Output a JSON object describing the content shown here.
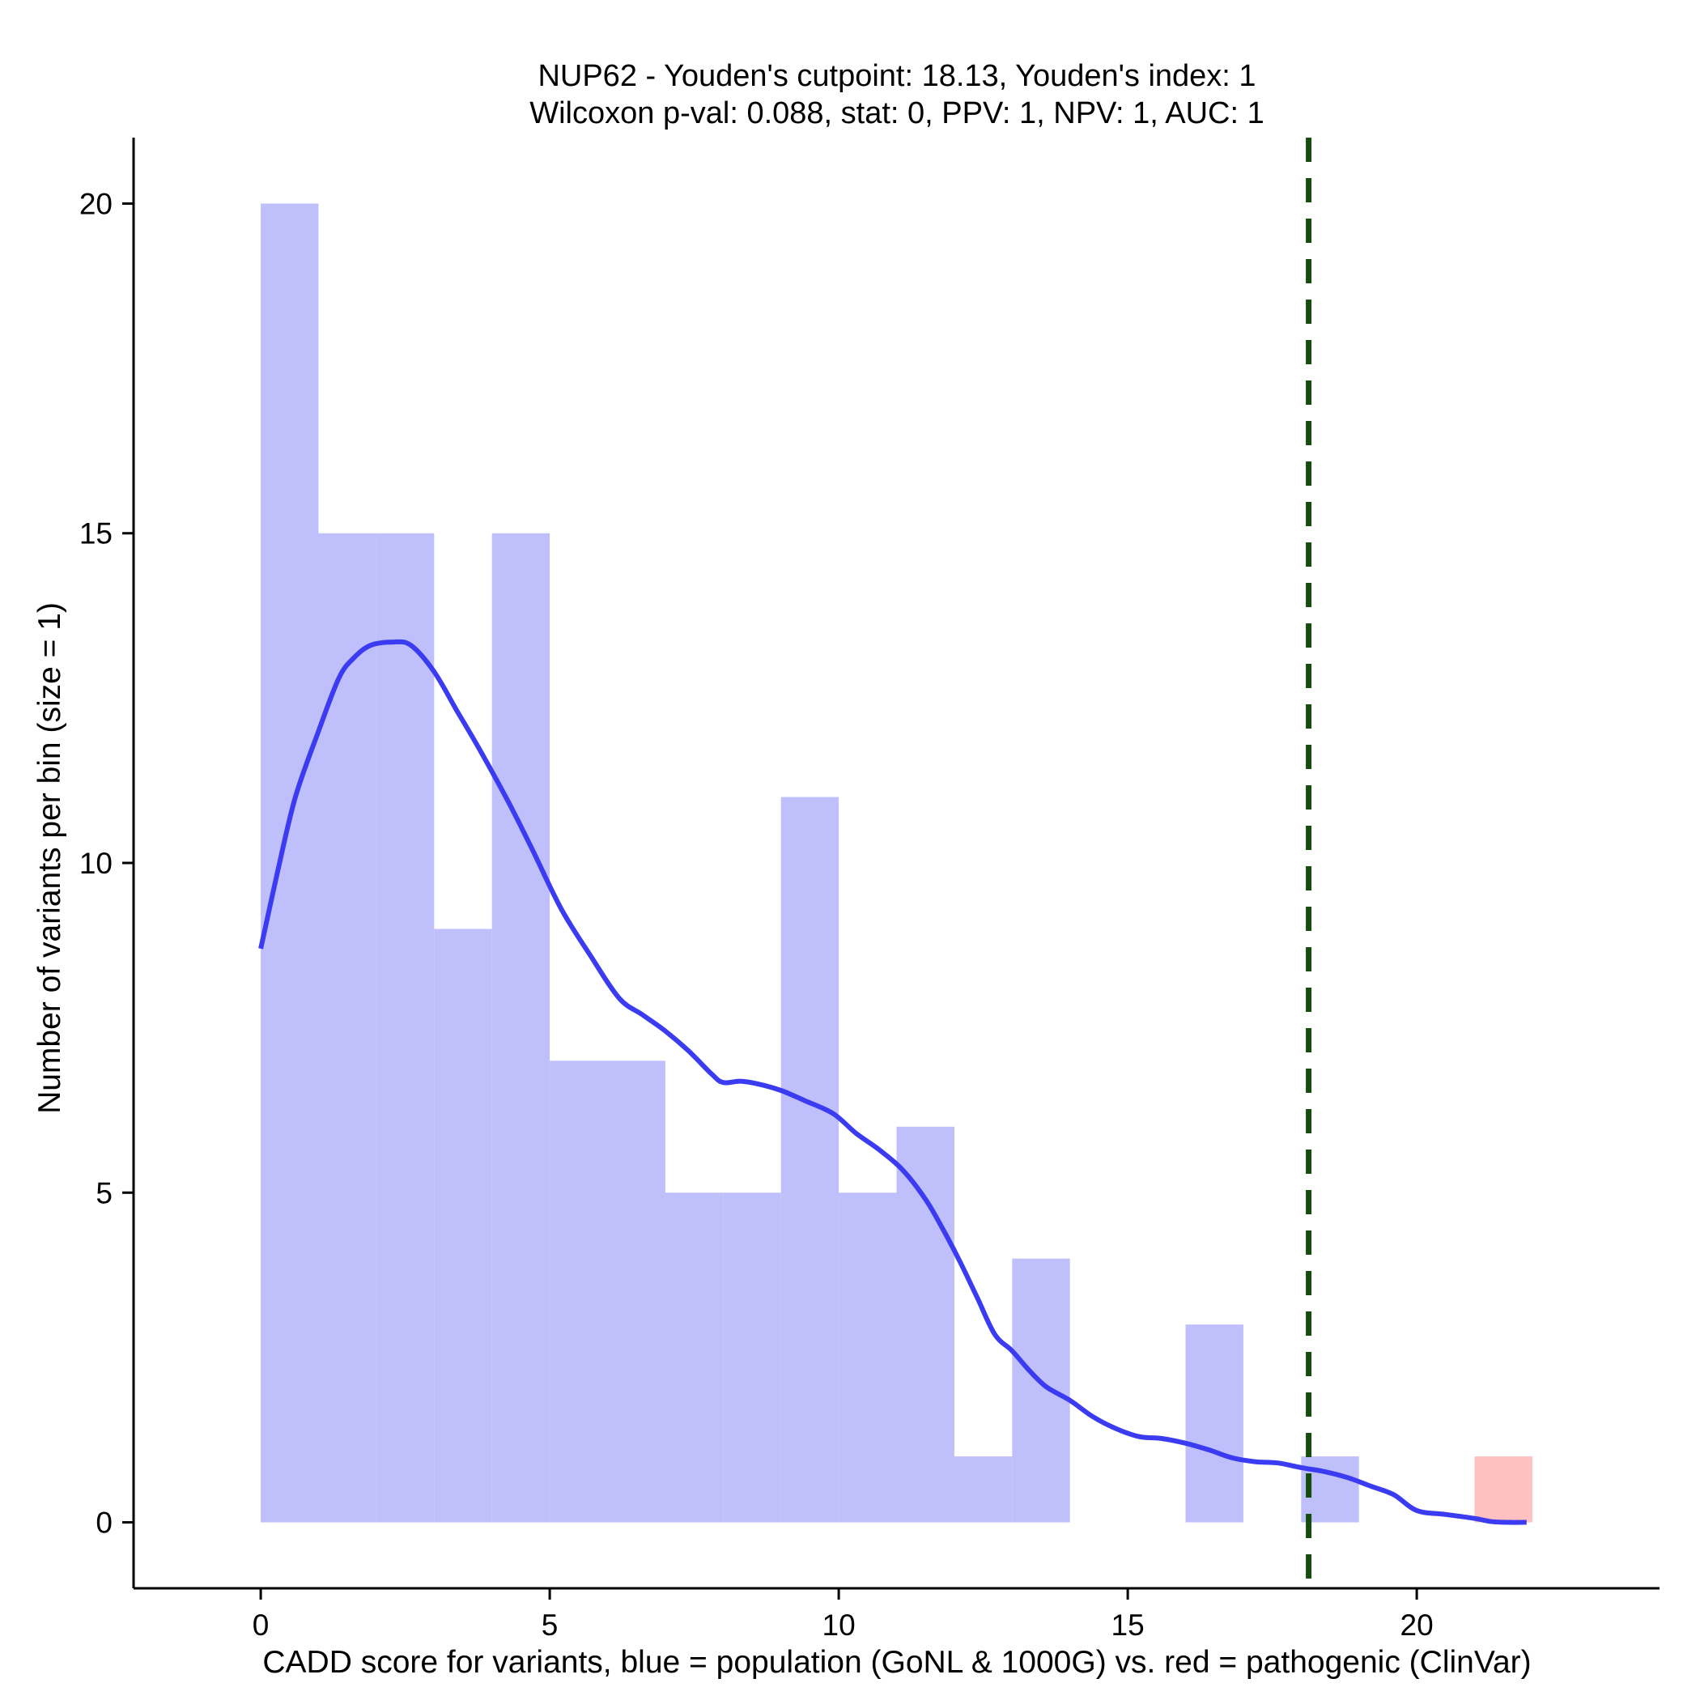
{
  "chart_data": {
    "type": "histogram",
    "title_lines": [
      "NUP62 - Youden's cutpoint: 18.13, Youden's index: 1",
      "Wilcoxon p-val: 0.088, stat: 0, PPV: 1, NPV: 1, AUC: 1"
    ],
    "xlabel": "CADD score for variants, blue = population (GoNL & 1000G) vs. red = pathogenic (ClinVar)",
    "ylabel": "Number of variants per bin (size = 1)",
    "xlim": [
      -2.2,
      24.2
    ],
    "ylim": [
      -1,
      21
    ],
    "x_ticks": [
      0,
      5,
      10,
      15,
      20
    ],
    "x_tick_labels": [
      "0",
      "5",
      "10",
      "15",
      "20"
    ],
    "y_ticks": [
      0,
      5,
      10,
      15,
      20
    ],
    "y_tick_labels": [
      "0",
      "5",
      "10",
      "15",
      "20"
    ],
    "bin_size": 1,
    "series": [
      {
        "name": "population (GoNL & 1000G)",
        "color": "#bfbffc",
        "bins": [
          {
            "x0": 0,
            "x1": 1,
            "count": 20
          },
          {
            "x0": 1,
            "x1": 2,
            "count": 15
          },
          {
            "x0": 2,
            "x1": 3,
            "count": 15
          },
          {
            "x0": 3,
            "x1": 4,
            "count": 9
          },
          {
            "x0": 4,
            "x1": 5,
            "count": 15
          },
          {
            "x0": 5,
            "x1": 6,
            "count": 7
          },
          {
            "x0": 6,
            "x1": 7,
            "count": 7
          },
          {
            "x0": 7,
            "x1": 8,
            "count": 5
          },
          {
            "x0": 8,
            "x1": 9,
            "count": 5
          },
          {
            "x0": 9,
            "x1": 10,
            "count": 11
          },
          {
            "x0": 10,
            "x1": 11,
            "count": 5
          },
          {
            "x0": 11,
            "x1": 12,
            "count": 6
          },
          {
            "x0": 12,
            "x1": 13,
            "count": 1
          },
          {
            "x0": 13,
            "x1": 14,
            "count": 4
          },
          {
            "x0": 14,
            "x1": 15,
            "count": 0
          },
          {
            "x0": 15,
            "x1": 16,
            "count": 0
          },
          {
            "x0": 16,
            "x1": 17,
            "count": 3
          },
          {
            "x0": 17,
            "x1": 18,
            "count": 0
          },
          {
            "x0": 18,
            "x1": 19,
            "count": 1
          }
        ]
      },
      {
        "name": "pathogenic (ClinVar)",
        "color": "#ffc0c0",
        "bins": [
          {
            "x0": 21,
            "x1": 22,
            "count": 1
          }
        ]
      }
    ],
    "density_curve": {
      "color": "#3b3bf2",
      "points": [
        [
          0,
          8.7
        ],
        [
          0.3,
          9.9
        ],
        [
          0.6,
          11.0
        ],
        [
          1.0,
          12.0
        ],
        [
          1.35,
          12.8
        ],
        [
          1.6,
          13.1
        ],
        [
          1.9,
          13.3
        ],
        [
          2.3,
          13.35
        ],
        [
          2.6,
          13.3
        ],
        [
          3.0,
          12.9
        ],
        [
          3.4,
          12.3
        ],
        [
          3.8,
          11.7
        ],
        [
          4.3,
          10.9
        ],
        [
          4.7,
          10.2
        ],
        [
          5.2,
          9.3
        ],
        [
          5.7,
          8.6
        ],
        [
          6.2,
          7.95
        ],
        [
          6.6,
          7.7
        ],
        [
          7.0,
          7.45
        ],
        [
          7.4,
          7.15
        ],
        [
          7.8,
          6.8
        ],
        [
          8.0,
          6.67
        ],
        [
          8.3,
          6.69
        ],
        [
          8.6,
          6.65
        ],
        [
          9.0,
          6.55
        ],
        [
          9.4,
          6.4
        ],
        [
          9.9,
          6.2
        ],
        [
          10.3,
          5.9
        ],
        [
          10.7,
          5.65
        ],
        [
          11.1,
          5.35
        ],
        [
          11.5,
          4.9
        ],
        [
          11.8,
          4.45
        ],
        [
          12.1,
          3.95
        ],
        [
          12.4,
          3.4
        ],
        [
          12.7,
          2.85
        ],
        [
          13.0,
          2.6
        ],
        [
          13.3,
          2.3
        ],
        [
          13.6,
          2.05
        ],
        [
          14.0,
          1.85
        ],
        [
          14.4,
          1.6
        ],
        [
          14.8,
          1.42
        ],
        [
          15.2,
          1.3
        ],
        [
          15.6,
          1.27
        ],
        [
          16.0,
          1.2
        ],
        [
          16.4,
          1.1
        ],
        [
          16.8,
          0.98
        ],
        [
          17.2,
          0.92
        ],
        [
          17.6,
          0.9
        ],
        [
          18.0,
          0.83
        ],
        [
          18.4,
          0.77
        ],
        [
          18.8,
          0.68
        ],
        [
          19.2,
          0.55
        ],
        [
          19.6,
          0.42
        ],
        [
          20.0,
          0.18
        ],
        [
          20.5,
          0.12
        ],
        [
          21.0,
          0.06
        ],
        [
          21.3,
          0.01
        ],
        [
          21.6,
          0.0
        ],
        [
          21.9,
          0.0
        ]
      ]
    },
    "cutpoint": {
      "value": 18.13,
      "color": "#174c0f",
      "style": "dashed"
    }
  }
}
